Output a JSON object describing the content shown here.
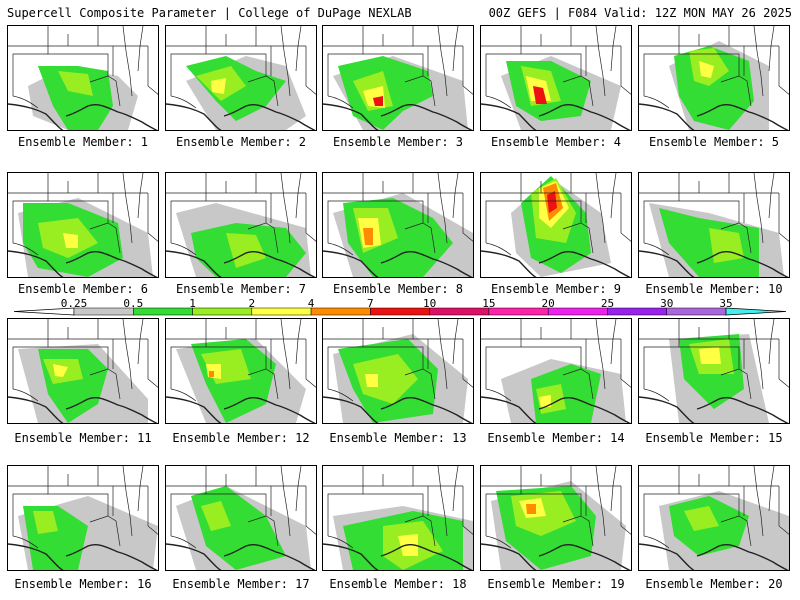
{
  "header": {
    "title_left": "Supercell Composite Parameter | College of DuPage NEXLAB",
    "title_right": "00Z GEFS | F084 Valid: 12Z MON MAY 26 2025"
  },
  "panel_label_prefix": "Ensemble Member: ",
  "members": [
    {
      "label": "Ensemble Member: 1"
    },
    {
      "label": "Ensemble Member: 2"
    },
    {
      "label": "Ensemble Member: 3"
    },
    {
      "label": "Ensemble Member: 4"
    },
    {
      "label": "Ensemble Member: 5"
    },
    {
      "label": "Ensemble Member: 6"
    },
    {
      "label": "Ensemble Member: 7"
    },
    {
      "label": "Ensemble Member: 8"
    },
    {
      "label": "Ensemble Member: 9"
    },
    {
      "label": "Ensemble Member: 10"
    },
    {
      "label": "Ensemble Member: 11"
    },
    {
      "label": "Ensemble Member: 12"
    },
    {
      "label": "Ensemble Member: 13"
    },
    {
      "label": "Ensemble Member: 14"
    },
    {
      "label": "Ensemble Member: 15"
    },
    {
      "label": "Ensemble Member: 16"
    },
    {
      "label": "Ensemble Member: 17"
    },
    {
      "label": "Ensemble Member: 18"
    },
    {
      "label": "Ensemble Member: 19"
    },
    {
      "label": "Ensemble Member: 20"
    }
  ],
  "colorbar": {
    "thresholds": [
      "0.25",
      "0.5",
      "1",
      "2",
      "4",
      "7",
      "10",
      "15",
      "20",
      "25",
      "30",
      "35"
    ],
    "colors": [
      "#c8c8c8",
      "#33dd33",
      "#99ee22",
      "#ffff44",
      "#ff8c00",
      "#ee1111",
      "#dd1166",
      "#ff22aa",
      "#ee22ee",
      "#9922ee",
      "#aa66dd",
      "#44eeee"
    ]
  },
  "shading_colors": {
    "gray": "#c8c8c8",
    "green": "#33dd33",
    "lightgreen": "#99ee22",
    "yellow": "#ffff44",
    "orange": "#ff8c00",
    "red": "#ee1111"
  }
}
